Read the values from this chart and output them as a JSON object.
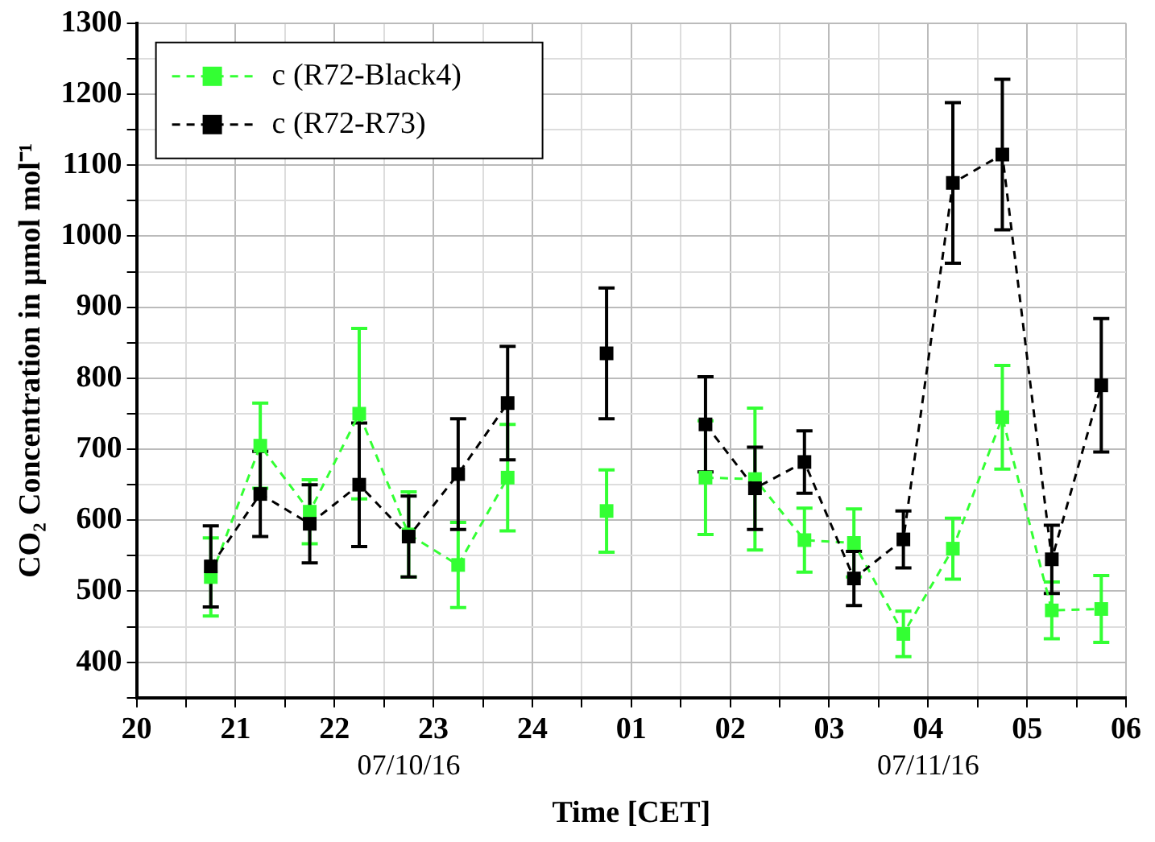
{
  "chart_data": {
    "type": "line",
    "xlabel": "Time [CET]",
    "ylabel": "CO₂ Concentration in µmol mol⁻¹",
    "annotations": [
      "07/10/16",
      "07/11/16"
    ],
    "x": [
      "--07-10T20:45",
      "--07-10T21:15",
      "--07-10T21:45",
      "--07-10T22:15",
      "--07-10T22:45",
      "--07-10T23:15",
      "--07-10T23:45",
      "--07-11T00:15",
      "--07-11T00:45",
      "--07-11T01:15",
      "--07-11T01:45",
      "--07-11T02:15",
      "--07-11T02:45",
      "--07-11T03:15",
      "--07-11T03:45",
      "--07-11T04:15",
      "--07-11T04:45",
      "--07-11T05:15",
      "--07-11T05:45"
    ],
    "series": [
      {
        "name": "c (R72-Black4)",
        "color": "#33ff33",
        "values": [
          520,
          705,
          612,
          750,
          580,
          537,
          660,
          null,
          613,
          null,
          660,
          658,
          572,
          568,
          440,
          560,
          745,
          473,
          475
        ],
        "errors": [
          55,
          60,
          45,
          120,
          60,
          60,
          75,
          null,
          58,
          null,
          80,
          100,
          45,
          48,
          32,
          43,
          73,
          40,
          47
        ]
      },
      {
        "name": "c (R72-R73)",
        "color": "#000000",
        "values": [
          535,
          637,
          595,
          650,
          577,
          665,
          765,
          null,
          835,
          null,
          735,
          645,
          682,
          518,
          573,
          1075,
          1115,
          545,
          790
        ],
        "errors": [
          57,
          60,
          55,
          87,
          57,
          78,
          80,
          null,
          92,
          null,
          67,
          58,
          44,
          38,
          40,
          113,
          106,
          48,
          94
        ]
      }
    ],
    "xlim": [
      "--07-10T20:00",
      "--07-11T06:00"
    ],
    "xticks": [
      {
        "value": "--07-10T20:00",
        "label": "20"
      },
      {
        "value": "--07-10T20:30",
        "label": null
      },
      {
        "value": "--07-10T21:00",
        "label": "21"
      },
      {
        "value": "--07-10T21:30",
        "label": null
      },
      {
        "value": "--07-10T22:00",
        "label": "22"
      },
      {
        "value": "--07-10T22:30",
        "label": null
      },
      {
        "value": "--07-10T23:00",
        "label": "23"
      },
      {
        "value": "--07-10T23:30",
        "label": null
      },
      {
        "value": "--07-11T00:00",
        "label": "24"
      },
      {
        "value": "--07-11T00:30",
        "label": null
      },
      {
        "value": "--07-11T01:00",
        "label": "01"
      },
      {
        "value": "--07-11T01:30",
        "label": null
      },
      {
        "value": "--07-11T02:00",
        "label": "02"
      },
      {
        "value": "--07-11T02:30",
        "label": null
      },
      {
        "value": "--07-11T03:00",
        "label": "03"
      },
      {
        "value": "--07-11T03:30",
        "label": null
      },
      {
        "value": "--07-11T04:00",
        "label": "04"
      },
      {
        "value": "--07-11T04:30",
        "label": null
      },
      {
        "value": "--07-11T05:00",
        "label": "05"
      },
      {
        "value": "--07-11T05:30",
        "label": null
      },
      {
        "value": "--07-11T06:00",
        "label": "06"
      }
    ],
    "ylim": [
      350,
      1300
    ],
    "yticks": [
      {
        "value": 350,
        "label": null
      },
      400,
      {
        "value": 450,
        "label": null
      },
      500,
      {
        "value": 550,
        "label": null
      },
      600,
      {
        "value": 650,
        "label": null
      },
      700,
      {
        "value": 750,
        "label": null
      },
      800,
      {
        "value": 850,
        "label": null
      },
      900,
      {
        "value": 950,
        "label": null
      },
      1000,
      {
        "value": 1050,
        "label": null
      },
      1100,
      {
        "value": 1150,
        "label": null
      },
      1200,
      {
        "value": 1250,
        "label": null
      },
      1300
    ],
    "grid": true,
    "legend": "top left",
    "marker": "square",
    "line_style": "dashed"
  }
}
